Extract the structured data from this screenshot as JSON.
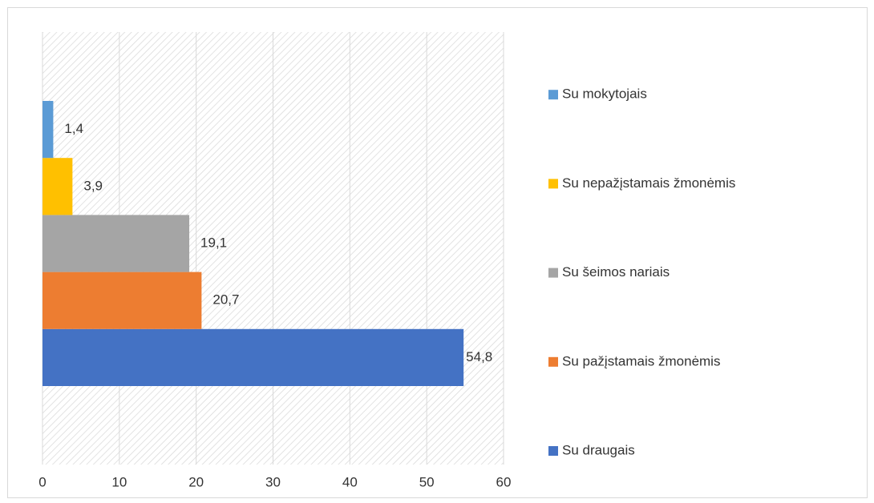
{
  "chart_data": {
    "type": "bar",
    "orientation": "horizontal",
    "series": [
      {
        "name": "Su draugais",
        "color": "#4472c4",
        "values": [
          54.8
        ],
        "value_labels": [
          "54,8"
        ]
      },
      {
        "name": "Su pažįstamais žmonėmis",
        "color": "#ed7d31",
        "values": [
          20.7
        ],
        "value_labels": [
          "20,7"
        ]
      },
      {
        "name": "Su šeimos nariais",
        "color": "#a5a5a5",
        "values": [
          19.1
        ],
        "value_labels": [
          "19,1"
        ]
      },
      {
        "name": "Su nepažįstamais žmonėmis",
        "color": "#ffc000",
        "values": [
          3.9
        ],
        "value_labels": [
          "3,9"
        ]
      },
      {
        "name": "Su mokytojais",
        "color": "#5b9bd5",
        "values": [
          1.4
        ],
        "value_labels": [
          "1,4"
        ]
      }
    ],
    "xlim": [
      0,
      60
    ],
    "xticks": [
      0,
      10,
      20,
      30,
      40,
      50,
      60
    ],
    "grid": true,
    "legend": "right"
  }
}
